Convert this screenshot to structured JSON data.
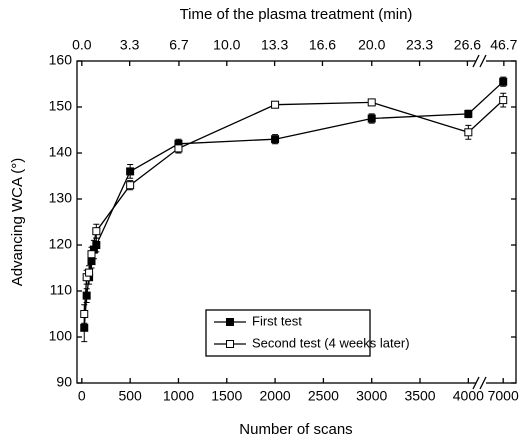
{
  "chart_data": {
    "type": "line",
    "xlabel": "Number of scans",
    "ylabel": "Advancing WCA (°)",
    "x2label": "Time of the plasma treatment (min)",
    "xlim": [
      -50,
      7100
    ],
    "xbreak": [
      4100,
      6850
    ],
    "xticks": [
      0,
      500,
      1000,
      1500,
      2000,
      2500,
      3000,
      3500,
      4000,
      7000
    ],
    "x2lim": [
      -0.333,
      47.33
    ],
    "x2break": [
      27.33,
      45.67
    ],
    "x2ticks": [
      {
        "value": 0,
        "label": "0.0"
      },
      3.3,
      6.7,
      {
        "value": 10,
        "label": "10.0"
      },
      13.3,
      16.6,
      {
        "value": 20,
        "label": "20.0"
      },
      23.3,
      26.6,
      46.7
    ],
    "ylim": [
      90,
      160
    ],
    "yticks": [
      90,
      100,
      110,
      120,
      130,
      140,
      150,
      160
    ],
    "series": [
      {
        "name": "First test",
        "color": "#000000",
        "marker": "filled",
        "x": [
          25,
          50,
          75,
          100,
          125,
          150,
          500,
          1000,
          2000,
          3000,
          4000,
          7000
        ],
        "values": [
          102,
          109,
          113,
          116.5,
          119,
          120,
          136,
          142,
          143,
          147.5,
          148.5,
          155.5
        ],
        "errors": [
          3,
          1.5,
          1.5,
          1.5,
          2,
          1.5,
          1.5,
          1,
          1,
          1,
          0.8,
          1
        ]
      },
      {
        "name": "Second test (4 weeks later)",
        "color": "#000000",
        "marker": "open",
        "x": [
          25,
          50,
          75,
          100,
          150,
          500,
          1000,
          2000,
          3000,
          4000,
          7000
        ],
        "values": [
          105,
          113,
          114,
          118,
          123,
          133,
          141,
          150.5,
          151,
          144.5,
          151.5
        ],
        "errors": [
          2,
          1.5,
          1.5,
          1.5,
          1.5,
          1,
          1,
          0.7,
          0.7,
          1.5,
          1.5
        ]
      }
    ]
  }
}
